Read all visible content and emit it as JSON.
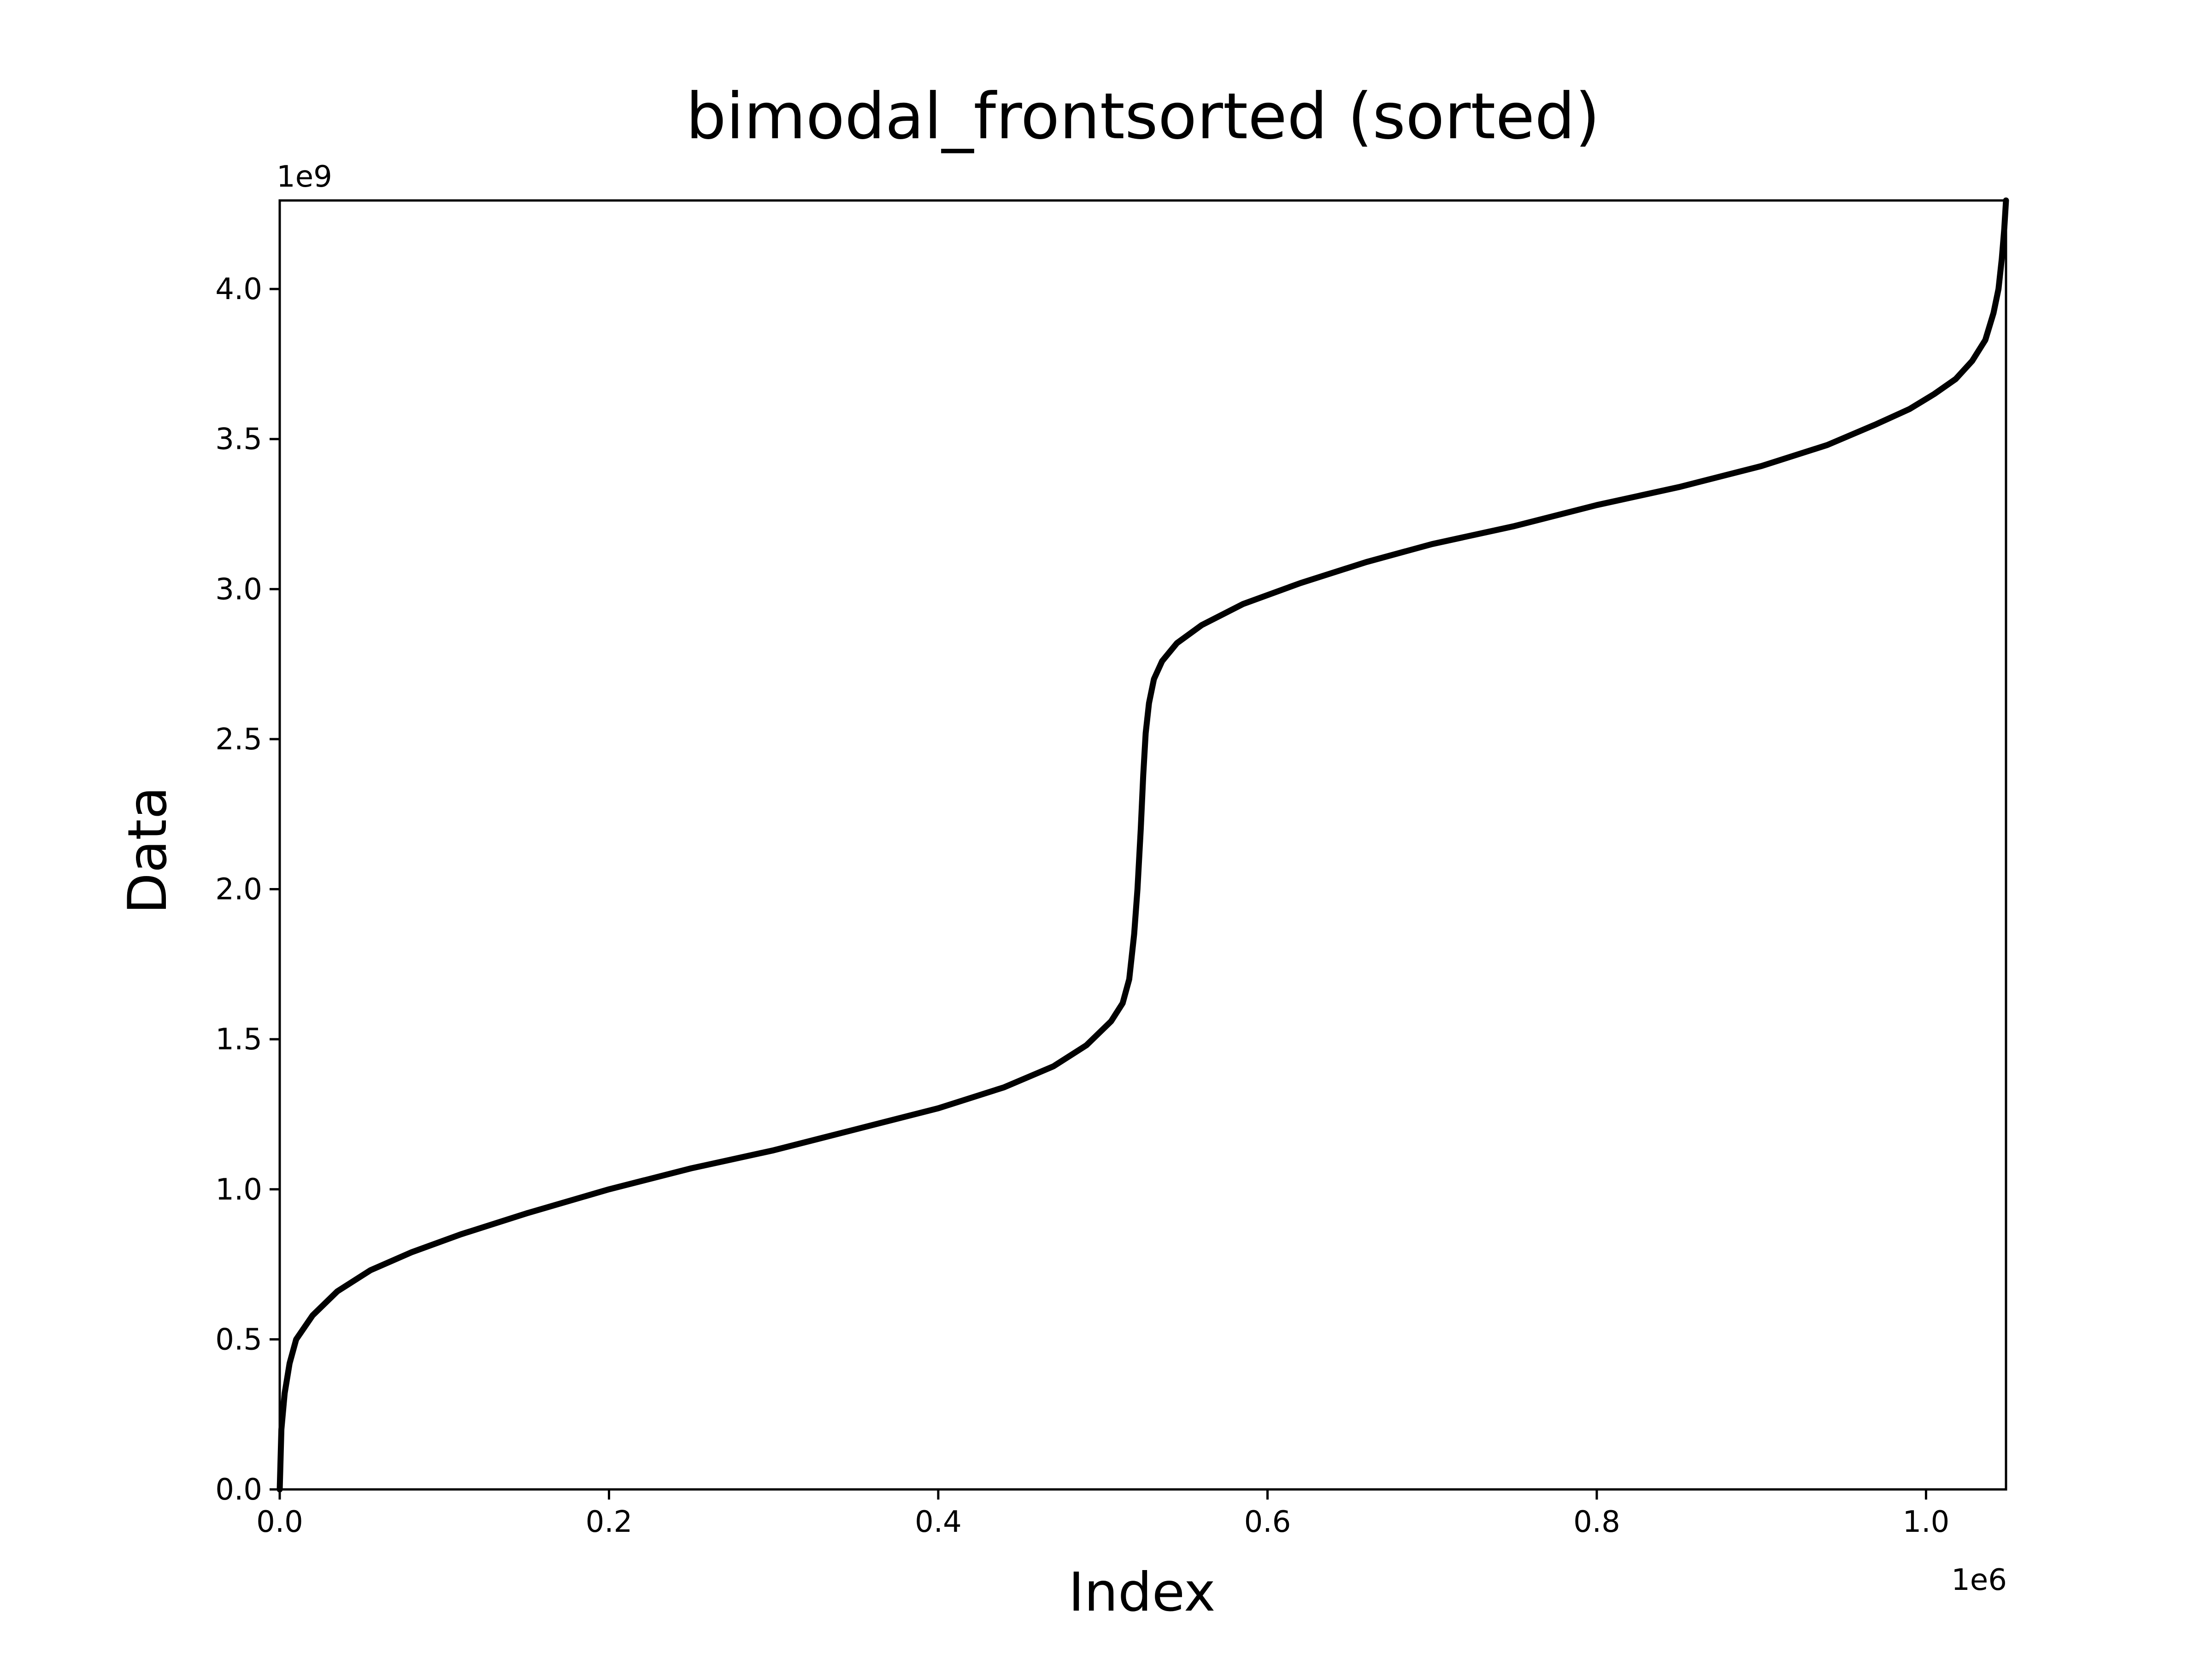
{
  "chart_data": {
    "type": "line",
    "title": "bimodal_frontsorted (sorted)",
    "xlabel": "Index",
    "ylabel": "Data",
    "x_offset_label": "1e6",
    "y_offset_label": "1e9",
    "xlim": [
      0,
      1048576
    ],
    "ylim": [
      0,
      4294967295
    ],
    "x_ticks": [
      0,
      200000,
      400000,
      600000,
      800000,
      1000000
    ],
    "x_tick_labels": [
      "0.0",
      "0.2",
      "0.4",
      "0.6",
      "0.8",
      "1.0"
    ],
    "y_ticks": [
      0,
      500000000,
      1000000000,
      1500000000,
      2000000000,
      2500000000,
      3000000000,
      3500000000,
      4000000000
    ],
    "y_tick_labels": [
      "0.0",
      "0.5",
      "1.0",
      "1.5",
      "2.0",
      "2.5",
      "3.0",
      "3.5",
      "4.0"
    ],
    "grid": false,
    "legend": "none",
    "line_color": "#000000",
    "series": [
      {
        "x": [
          0,
          1000,
          3000,
          6000,
          10000,
          20000,
          35000,
          55000,
          80000,
          110000,
          150000,
          200000,
          250000,
          300000,
          350000,
          400000,
          440000,
          470000,
          490000,
          505000,
          512000,
          516000,
          519000,
          521000,
          523000,
          524500,
          526000,
          528000,
          531000,
          536000,
          545000,
          560000,
          585000,
          620000,
          660000,
          700000,
          750000,
          800000,
          850000,
          900000,
          940000,
          970000,
          990000,
          1005000,
          1018000,
          1028000,
          1036000,
          1041000,
          1044000,
          1046000,
          1047500,
          1048576
        ],
        "y": [
          0,
          200000000,
          320000000,
          420000000,
          500000000,
          580000000,
          660000000,
          730000000,
          790000000,
          850000000,
          920000000,
          1000000000,
          1070000000,
          1130000000,
          1200000000,
          1270000000,
          1340000000,
          1410000000,
          1480000000,
          1560000000,
          1620000000,
          1700000000,
          1850000000,
          2000000000,
          2200000000,
          2380000000,
          2520000000,
          2620000000,
          2700000000,
          2760000000,
          2820000000,
          2880000000,
          2950000000,
          3020000000,
          3090000000,
          3150000000,
          3210000000,
          3280000000,
          3340000000,
          3410000000,
          3480000000,
          3550000000,
          3600000000,
          3650000000,
          3700000000,
          3760000000,
          3830000000,
          3920000000,
          4000000000,
          4100000000,
          4200000000,
          4294967295
        ]
      }
    ]
  }
}
